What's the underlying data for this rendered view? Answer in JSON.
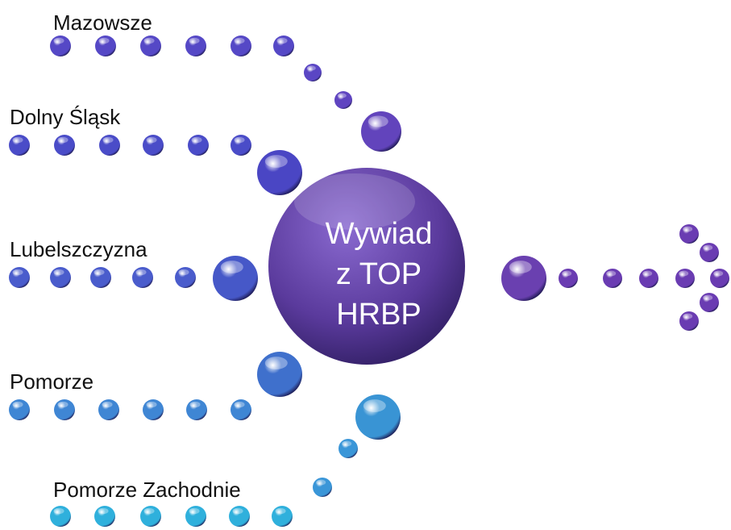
{
  "center": {
    "lines": [
      "Wywiad",
      "z TOP",
      "HRBP"
    ]
  },
  "nodes": [
    {
      "label": "Mazowsze"
    },
    {
      "label": "Dolny Śląsk"
    },
    {
      "label": "Lubelszczyzna"
    },
    {
      "label": "Pomorze"
    },
    {
      "label": "Pomorze Zachodnie"
    }
  ]
}
